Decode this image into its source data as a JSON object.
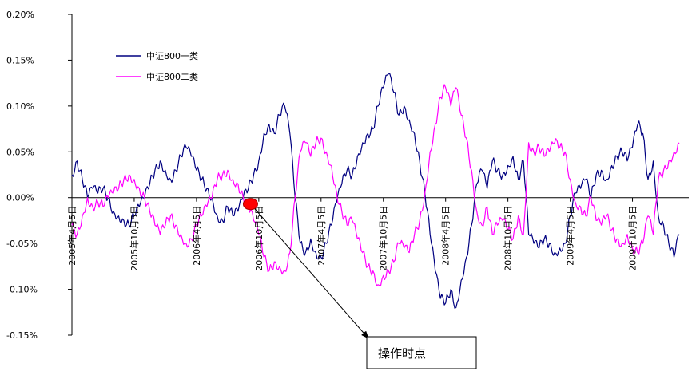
{
  "chart_data": {
    "type": "line",
    "ylim": [
      -0.15,
      0.2
    ],
    "y_ticks": [
      "0.20%",
      "0.15%",
      "0.10%",
      "0.05%",
      "0.00%",
      "-0.05%",
      "-0.10%",
      "-0.15%"
    ],
    "y_tick_values": [
      0.2,
      0.15,
      0.1,
      0.05,
      0.0,
      -0.05,
      -0.1,
      -0.15
    ],
    "x_ticks": [
      "2005年4月5日",
      "2005年10月5日",
      "2006年4月5日",
      "2006年10月5日",
      "2007年4月5日",
      "2007年10月5日",
      "2008年4月5日",
      "2008年10月5日",
      "2009年4月5日",
      "2009年10月5日"
    ],
    "x_tick_positions": [
      0,
      6,
      12,
      18,
      24,
      30,
      36,
      42,
      48,
      54
    ],
    "x_range": [
      0,
      58.5
    ],
    "grid": false,
    "legend_position": "top-left",
    "colors": {
      "series_1": "#000080",
      "series_2": "#ff00ff",
      "marker": "#ff0000",
      "zero_line": "#000000"
    },
    "series": [
      {
        "name": "中证800一类",
        "color": "#000080",
        "x": [
          0,
          0.5,
          1,
          1.5,
          2,
          2.5,
          3,
          3.5,
          4,
          4.5,
          5,
          5.5,
          6,
          6.5,
          7,
          7.5,
          8,
          8.5,
          9,
          9.5,
          10,
          10.5,
          11,
          11.5,
          12,
          12.5,
          13,
          13.5,
          14,
          14.5,
          15,
          15.5,
          16,
          16.5,
          17,
          17.5,
          18,
          18.5,
          19,
          19.5,
          20,
          20.5,
          21,
          21.5,
          22,
          22.5,
          23,
          23.5,
          24,
          24.5,
          25,
          25.5,
          26,
          26.5,
          27,
          27.5,
          28,
          28.5,
          29,
          29.5,
          30,
          30.5,
          31,
          31.5,
          32,
          32.5,
          33,
          33.5,
          34,
          34.5,
          35,
          35.5,
          36,
          36.5,
          37,
          37.5,
          38,
          38.5,
          39,
          39.5,
          40,
          40.5,
          41,
          41.5,
          42,
          42.5,
          43,
          43.5,
          44,
          44.5,
          45,
          45.5,
          46,
          46.5,
          47,
          47.5,
          48,
          48.5,
          49,
          49.5,
          50,
          50.5,
          51,
          51.5,
          52,
          52.5,
          53,
          53.5,
          54,
          54.5,
          55,
          55.5,
          56,
          56.5,
          57,
          57.5,
          58,
          58.5
        ],
        "values": [
          0.025,
          0.04,
          0.02,
          0.0,
          0.01,
          0.005,
          0.01,
          0.0,
          -0.015,
          -0.02,
          -0.025,
          -0.03,
          -0.02,
          -0.01,
          0.0,
          0.015,
          0.03,
          0.04,
          0.03,
          0.02,
          0.03,
          0.045,
          0.055,
          0.045,
          0.03,
          0.02,
          0.01,
          0.0,
          -0.02,
          -0.025,
          -0.01,
          -0.02,
          -0.015,
          0.0,
          0.01,
          0.025,
          0.04,
          0.07,
          0.08,
          0.07,
          0.09,
          0.1,
          0.07,
          0.0,
          -0.05,
          -0.06,
          -0.045,
          -0.06,
          -0.065,
          -0.05,
          -0.03,
          -0.005,
          0.015,
          0.03,
          0.025,
          0.045,
          0.06,
          0.07,
          0.075,
          0.1,
          0.12,
          0.135,
          0.115,
          0.09,
          0.1,
          0.085,
          0.07,
          0.04,
          0.005,
          -0.04,
          -0.08,
          -0.11,
          -0.115,
          -0.1,
          -0.12,
          -0.09,
          -0.065,
          -0.03,
          0.015,
          0.03,
          0.01,
          0.04,
          0.03,
          0.025,
          0.035,
          0.045,
          0.02,
          0.04,
          -0.04,
          -0.05,
          -0.055,
          -0.045,
          -0.05,
          -0.06,
          -0.055,
          -0.05,
          -0.02,
          0.005,
          0.01,
          0.02,
          0.0,
          0.025,
          0.03,
          0.02,
          0.035,
          0.045,
          0.05,
          0.04,
          0.055,
          0.08,
          0.07,
          0.02,
          0.04,
          -0.02,
          -0.03,
          -0.05,
          -0.065,
          -0.04
        ],
        "note": "中证800一类"
      },
      {
        "name": "中证800二类",
        "color": "#ff00ff",
        "x": [
          0,
          0.5,
          1,
          1.5,
          2,
          2.5,
          3,
          3.5,
          4,
          4.5,
          5,
          5.5,
          6,
          6.5,
          7,
          7.5,
          8,
          8.5,
          9,
          9.5,
          10,
          10.5,
          11,
          11.5,
          12,
          12.5,
          13,
          13.5,
          14,
          14.5,
          15,
          15.5,
          16,
          16.5,
          17,
          17.5,
          18,
          18.5,
          19,
          19.5,
          20,
          20.5,
          21,
          21.5,
          22,
          22.5,
          23,
          23.5,
          24,
          24.5,
          25,
          25.5,
          26,
          26.5,
          27,
          27.5,
          28,
          28.5,
          29,
          29.5,
          30,
          30.5,
          31,
          31.5,
          32,
          32.5,
          33,
          33.5,
          34,
          34.5,
          35,
          35.5,
          36,
          36.5,
          37,
          37.5,
          38,
          38.5,
          39,
          39.5,
          40,
          40.5,
          41,
          41.5,
          42,
          42.5,
          43,
          43.5,
          44,
          44.5,
          45,
          45.5,
          46,
          46.5,
          47,
          47.5,
          48,
          48.5,
          49,
          49.5,
          50,
          50.5,
          51,
          51.5,
          52,
          52.5,
          53,
          53.5,
          54,
          54.5,
          55,
          55.5,
          56,
          56.5,
          57,
          57.5,
          58,
          58.5
        ],
        "values": [
          -0.03,
          -0.04,
          -0.02,
          0.0,
          -0.01,
          -0.005,
          -0.01,
          0.0,
          0.005,
          0.01,
          0.02,
          0.025,
          0.02,
          0.01,
          0.0,
          -0.015,
          -0.03,
          -0.04,
          -0.03,
          -0.02,
          -0.03,
          -0.04,
          -0.05,
          -0.045,
          -0.03,
          -0.02,
          -0.01,
          0.0,
          0.02,
          0.025,
          0.03,
          0.02,
          0.015,
          0.0,
          -0.01,
          -0.025,
          -0.04,
          -0.065,
          -0.08,
          -0.07,
          -0.075,
          -0.08,
          -0.06,
          0.0,
          0.05,
          0.06,
          0.045,
          0.06,
          0.065,
          0.05,
          0.035,
          0.005,
          -0.015,
          -0.03,
          -0.025,
          -0.045,
          -0.06,
          -0.075,
          -0.08,
          -0.095,
          -0.085,
          -0.08,
          -0.07,
          -0.05,
          -0.055,
          -0.06,
          -0.04,
          -0.025,
          0.005,
          0.05,
          0.08,
          0.11,
          0.12,
          0.1,
          0.12,
          0.09,
          0.065,
          0.03,
          -0.015,
          -0.03,
          -0.01,
          -0.04,
          -0.03,
          -0.025,
          -0.035,
          -0.045,
          -0.02,
          -0.04,
          0.06,
          0.05,
          0.055,
          0.045,
          0.05,
          0.06,
          0.055,
          0.05,
          0.02,
          -0.005,
          -0.01,
          -0.02,
          0.0,
          -0.025,
          -0.03,
          -0.02,
          -0.035,
          -0.045,
          -0.05,
          -0.04,
          -0.055,
          -0.06,
          -0.05,
          -0.02,
          -0.04,
          0.02,
          0.03,
          0.04,
          0.05,
          0.06
        ],
        "note": "中证800二类"
      }
    ],
    "annotation": {
      "label": "操作时点",
      "x": 17.2,
      "y": -0.007
    }
  }
}
